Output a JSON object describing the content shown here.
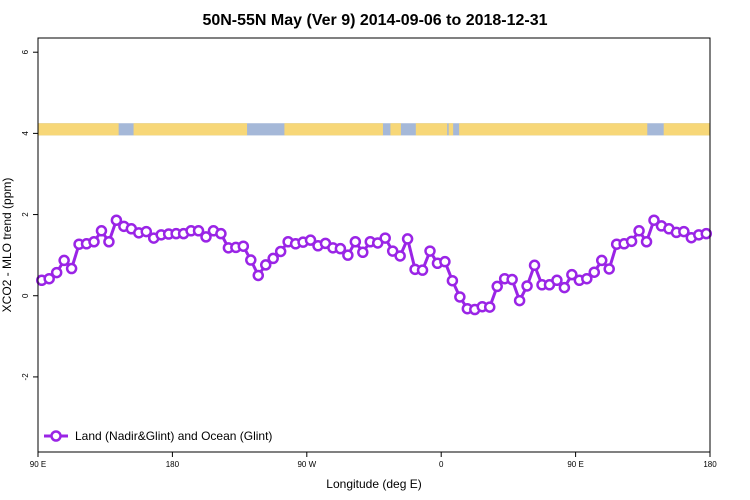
{
  "chart_data": {
    "type": "line",
    "title": "50N-55N May (Ver 9)   2014-09-06 to 2018-12-31",
    "xlabel": "Longitude (deg E)",
    "ylabel": "XCO2 - MLO trend (ppm)",
    "xlim": [
      90,
      540
    ],
    "ylim": [
      -3.85,
      6.35
    ],
    "x_ticks": [
      {
        "value": 90,
        "label": "90 E"
      },
      {
        "value": 180,
        "label": "180"
      },
      {
        "value": 270,
        "label": "90 W"
      },
      {
        "value": 360,
        "label": "0"
      },
      {
        "value": 450,
        "label": "90 E"
      },
      {
        "value": 540,
        "label": "180"
      }
    ],
    "y_ticks": [
      {
        "value": 6,
        "label": "6"
      },
      {
        "value": 4,
        "label": "4"
      },
      {
        "value": 2,
        "label": "2"
      },
      {
        "value": 0,
        "label": "0"
      },
      {
        "value": -2,
        "label": "-2"
      }
    ],
    "legend": {
      "position": "bottom-left"
    },
    "colors": {
      "series": "#9a24e6",
      "land": "#f7d778",
      "ocean": "#a5b8d8"
    },
    "land_ocean_band": {
      "y_range": [
        3.95,
        4.25
      ],
      "land_intervals": [
        [
          90,
          144
        ],
        [
          154,
          230
        ],
        [
          255,
          321
        ],
        [
          326,
          333
        ],
        [
          343,
          364
        ],
        [
          365,
          368
        ],
        [
          372,
          498
        ],
        [
          509,
          540
        ]
      ]
    },
    "series": [
      {
        "name": "Land (Nadir&Glint) and Ocean (Glint)",
        "x": [
          92.5,
          97.5,
          102.5,
          107.5,
          112.5,
          117.5,
          122.5,
          127.5,
          132.5,
          137.5,
          142.5,
          147.5,
          152.5,
          157.5,
          162.5,
          167.5,
          172.5,
          177.5,
          182.5,
          187.5,
          192.5,
          197.5,
          202.5,
          207.5,
          212.5,
          217.5,
          222.5,
          227.5,
          232.5,
          237.5,
          242.5,
          247.5,
          252.5,
          257.5,
          262.5,
          267.5,
          272.5,
          277.5,
          282.5,
          287.5,
          292.5,
          297.5,
          302.5,
          307.5,
          312.5,
          317.5,
          322.5,
          327.5,
          332.5,
          337.5,
          342.5,
          347.5,
          352.5,
          357.5,
          362.5,
          367.5,
          372.5,
          377.5,
          382.5,
          387.5,
          392.5,
          397.5,
          402.5,
          407.5,
          412.5,
          417.5,
          422.5,
          427.5,
          432.5,
          437.5,
          442.5,
          447.5,
          452.5,
          457.5,
          462.5,
          467.5,
          472.5,
          477.5,
          482.5,
          487.5,
          492.5,
          497.5,
          502.5,
          507.5,
          512.5,
          517.5,
          522.5,
          527.5,
          532.5,
          537.5
        ],
        "y": [
          0.38,
          0.42,
          0.57,
          0.87,
          0.67,
          1.27,
          1.28,
          1.33,
          1.6,
          1.33,
          1.86,
          1.71,
          1.65,
          1.55,
          1.58,
          1.42,
          1.5,
          1.52,
          1.53,
          1.53,
          1.6,
          1.6,
          1.45,
          1.6,
          1.53,
          1.18,
          1.19,
          1.22,
          0.88,
          0.5,
          0.76,
          0.92,
          1.09,
          1.33,
          1.28,
          1.32,
          1.37,
          1.23,
          1.29,
          1.18,
          1.16,
          1.0,
          1.33,
          1.07,
          1.33,
          1.3,
          1.42,
          1.1,
          0.98,
          1.4,
          0.65,
          0.63,
          1.1,
          0.8,
          0.84,
          0.37,
          -0.03,
          -0.32,
          -0.34,
          -0.27,
          -0.28,
          0.23,
          0.42,
          0.4,
          -0.12,
          0.24,
          0.75,
          0.27,
          0.27,
          0.38,
          0.2,
          0.52,
          0.38,
          0.42,
          0.58,
          0.87,
          0.66,
          1.27,
          1.28,
          1.34,
          1.6,
          1.33,
          1.86,
          1.72,
          1.65,
          1.56,
          1.58,
          1.43,
          1.5,
          1.53
        ]
      }
    ]
  }
}
